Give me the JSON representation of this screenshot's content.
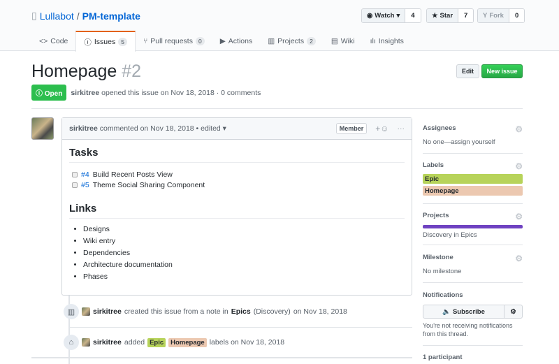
{
  "repo": {
    "owner": "Lullabot",
    "separator": "/",
    "name": "PM-template"
  },
  "actions": {
    "watch": {
      "label": "Watch",
      "count": "4"
    },
    "star": {
      "label": "Star",
      "count": "7"
    },
    "fork": {
      "label": "Fork",
      "count": "0"
    }
  },
  "tabs": [
    {
      "label": "Code",
      "icon": "code-icon"
    },
    {
      "label": "Issues",
      "count": "5",
      "icon": "issue-icon"
    },
    {
      "label": "Pull requests",
      "count": "0",
      "icon": "pr-icon"
    },
    {
      "label": "Actions",
      "icon": "play-icon"
    },
    {
      "label": "Projects",
      "count": "2",
      "icon": "project-icon"
    },
    {
      "label": "Wiki",
      "icon": "book-icon"
    },
    {
      "label": "Insights",
      "icon": "graph-icon"
    }
  ],
  "issue": {
    "title": "Homepage",
    "number": "#2",
    "state": "Open",
    "author": "sirkitree",
    "opened_text": "opened this issue on Nov 18, 2018 · 0 comments",
    "edit": "Edit",
    "new_issue": "New issue"
  },
  "comment": {
    "author": "sirkitree",
    "meta": "commented on Nov 18, 2018 • edited",
    "role": "Member",
    "tasks_heading": "Tasks",
    "tasks": [
      {
        "ref": "#4",
        "text": "Build Recent Posts View",
        "checked": false
      },
      {
        "ref": "#5",
        "text": "Theme Social Sharing Component",
        "checked": false
      }
    ],
    "links_heading": "Links",
    "links": [
      "Designs",
      "Wiki entry",
      "Dependencies",
      "Architecture documentation",
      "Phases"
    ]
  },
  "timeline": [
    {
      "actor": "sirkitree",
      "t1": "created this issue from a note in",
      "project": "Epics",
      "column": "(Discovery)",
      "t2": "on Nov 18, 2018"
    },
    {
      "actor": "sirkitree",
      "t1": "added",
      "labels": [
        "Epic",
        "Homepage"
      ],
      "t2": "labels on Nov 18, 2018"
    }
  ],
  "sidebar": {
    "assignees": {
      "title": "Assignees",
      "value": "No one—assign yourself"
    },
    "labels": {
      "title": "Labels",
      "items": [
        {
          "name": "Epic",
          "color": "#b7d35a"
        },
        {
          "name": "Homepage",
          "color": "#ecc8b0"
        }
      ]
    },
    "projects": {
      "title": "Projects",
      "value": "Discovery in Epics",
      "bar_color": "#6f42c1"
    },
    "milestone": {
      "title": "Milestone",
      "value": "No milestone"
    },
    "notifications": {
      "title": "Notifications",
      "button": "Subscribe",
      "text": "You're not receiving notifications from this thread."
    },
    "participants": "1 participant"
  }
}
